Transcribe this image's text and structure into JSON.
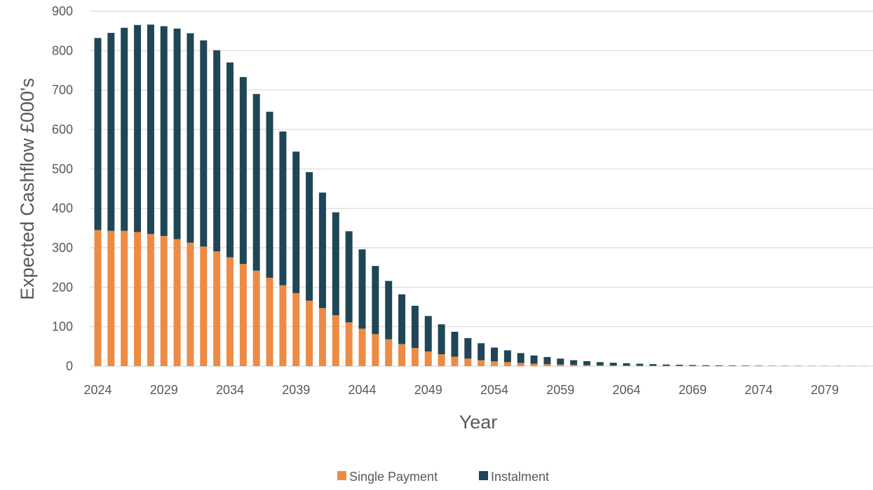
{
  "chart_data": {
    "type": "bar",
    "stacked": true,
    "title": "",
    "xlabel": "Year",
    "ylabel": "Expected Cashflow  £000's",
    "ylim": [
      0,
      900
    ],
    "yticks": [
      0,
      100,
      200,
      300,
      400,
      500,
      600,
      700,
      800,
      900
    ],
    "grid": true,
    "legend_position": "bottom",
    "x_tick_labels": [
      "2024",
      "2029",
      "2034",
      "2039",
      "2044",
      "2049",
      "2054",
      "2059",
      "2064",
      "2069",
      "2074",
      "2079"
    ],
    "categories": [
      2024,
      2025,
      2026,
      2027,
      2028,
      2029,
      2030,
      2031,
      2032,
      2033,
      2034,
      2035,
      2036,
      2037,
      2038,
      2039,
      2040,
      2041,
      2042,
      2043,
      2044,
      2045,
      2046,
      2047,
      2048,
      2049,
      2050,
      2051,
      2052,
      2053,
      2054,
      2055,
      2056,
      2057,
      2058,
      2059,
      2060,
      2061,
      2062,
      2063,
      2064,
      2065,
      2066,
      2067,
      2068,
      2069,
      2070,
      2071,
      2072,
      2073,
      2074,
      2075,
      2076,
      2077,
      2078,
      2079,
      2080,
      2081,
      2082
    ],
    "series": [
      {
        "name": "Single Payment",
        "color": "#ed8b45",
        "values": [
          345,
          343,
          343,
          340,
          335,
          330,
          322,
          313,
          303,
          291,
          276,
          259,
          242,
          224,
          205,
          185,
          166,
          147,
          129,
          111,
          95,
          81,
          68,
          56,
          46,
          37,
          30,
          24,
          19,
          15,
          12,
          10,
          8,
          6,
          5,
          4,
          3,
          2.5,
          2,
          1.5,
          1.2,
          1,
          0.8,
          0.6,
          0.5,
          0.4,
          0.3,
          0.3,
          0.2,
          0.2,
          0.1,
          0.1,
          0.1,
          0.1,
          0.1,
          0.1,
          0.05,
          0.05,
          0.05
        ]
      },
      {
        "name": "Instalment",
        "color": "#1f4656",
        "values": [
          487,
          502,
          515,
          525,
          531,
          532,
          534,
          531,
          523,
          510,
          494,
          474,
          448,
          421,
          390,
          359,
          326,
          293,
          261,
          231,
          201,
          173,
          148,
          126,
          107,
          90,
          76,
          63,
          52,
          43,
          35,
          30,
          25,
          21,
          18,
          15,
          12,
          10,
          8,
          7,
          6,
          5,
          4.2,
          3.4,
          2.8,
          2.3,
          1.9,
          1.6,
          1.3,
          1.1,
          0.9,
          0.7,
          0.6,
          0.5,
          0.4,
          0.3,
          0.3,
          0.25,
          0.2
        ]
      }
    ]
  }
}
